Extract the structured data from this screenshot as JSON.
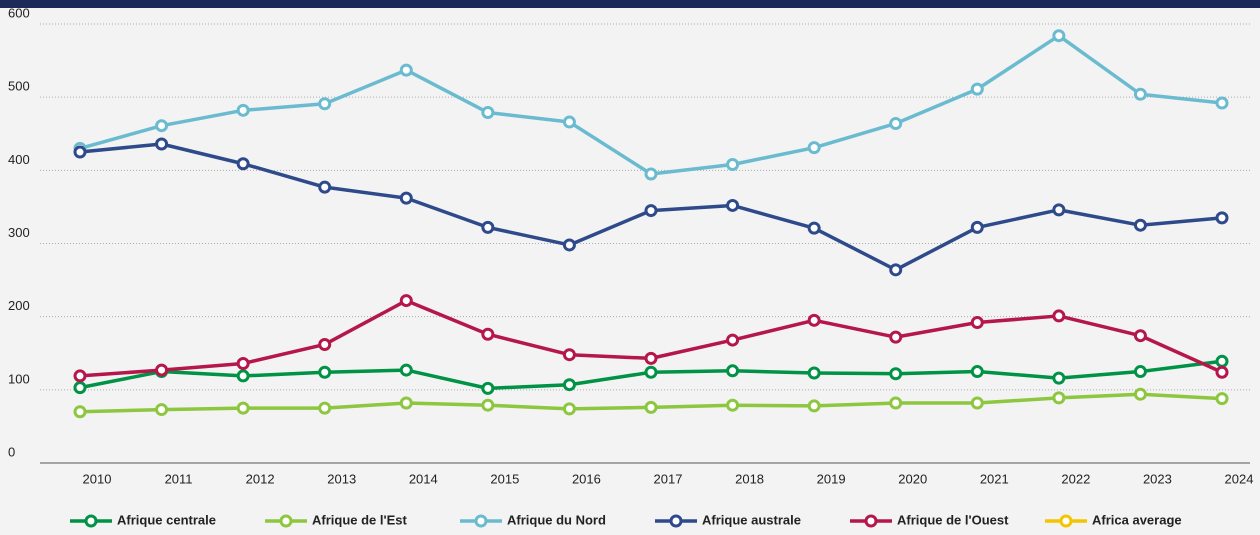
{
  "chart_data": {
    "type": "line",
    "categories": [
      "2010",
      "2011",
      "2012",
      "2013",
      "2014",
      "2015",
      "2016",
      "2017",
      "2018",
      "2019",
      "2020",
      "2021",
      "2022",
      "2023",
      "2024"
    ],
    "series": [
      {
        "name": "Afrique centrale",
        "color": "#009245",
        "values": [
          103,
          125,
          119,
          124,
          127,
          102,
          107,
          124,
          126,
          123,
          122,
          125,
          116,
          125,
          139
        ]
      },
      {
        "name": "Afrique de l'Est",
        "color": "#8dc63f",
        "values": [
          70,
          73,
          75,
          75,
          82,
          79,
          74,
          76,
          79,
          78,
          82,
          82,
          89,
          94,
          88
        ]
      },
      {
        "name": "Afrique du Nord",
        "color": "#6bbbd0",
        "values": [
          430,
          461,
          482,
          491,
          537,
          479,
          466,
          395,
          408,
          431,
          464,
          511,
          584,
          504,
          492
        ]
      },
      {
        "name": "Afrique australe",
        "color": "#2e4a8b",
        "values": [
          425,
          436,
          409,
          377,
          362,
          322,
          298,
          345,
          352,
          321,
          264,
          322,
          346,
          325,
          335
        ]
      },
      {
        "name": "Afrique de l'Ouest",
        "color": "#b5174b",
        "values": [
          119,
          127,
          136,
          162,
          222,
          176,
          148,
          143,
          168,
          195,
          172,
          192,
          201,
          174,
          124
        ]
      },
      {
        "name": "Africa average",
        "color": "#f5c400",
        "values": [
          null,
          null,
          null,
          null,
          null,
          null,
          null,
          null,
          null,
          null,
          null,
          null,
          null,
          null,
          null
        ]
      }
    ],
    "ylim": [
      0,
      600
    ],
    "yticks": [
      0,
      100,
      200,
      300,
      400,
      500,
      600
    ],
    "grid": true,
    "legend": "bottom"
  }
}
